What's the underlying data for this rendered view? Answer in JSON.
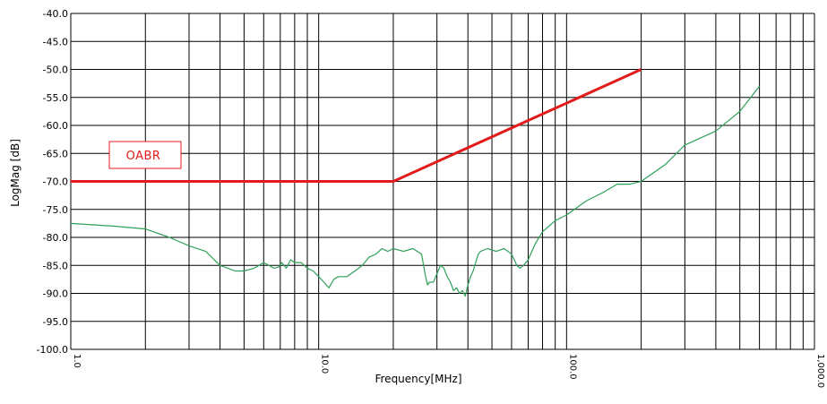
{
  "chart_data": {
    "type": "line",
    "title": "",
    "xlabel": "Frequency[MHz]",
    "ylabel": "LogMag [dB]",
    "x_scale": "log",
    "xlim": [
      1,
      1000
    ],
    "ylim": [
      -100,
      -40
    ],
    "grid": true,
    "x_tick_labels": [
      "1.0",
      "10.0",
      "100.0",
      "1,000.0"
    ],
    "y_tick_labels": [
      "-40.0",
      "-45.0",
      "-50.0",
      "-55.0",
      "-60.0",
      "-65.0",
      "-70.0",
      "-75.0",
      "-80.0",
      "-85.0",
      "-90.0",
      "-95.0",
      "-100.0"
    ],
    "annotation": "OABR",
    "series": [
      {
        "color": "#e21c1c",
        "x": [
          1,
          20,
          200
        ],
        "y": [
          -70,
          -70,
          -50
        ]
      },
      {
        "color": "#2fa05a",
        "x": [
          1,
          1.5,
          2,
          2.5,
          3,
          3.5,
          4,
          4.3,
          4.6,
          5,
          5.5,
          6,
          6.3,
          6.6,
          6.9,
          7.1,
          7.4,
          7.7,
          8,
          8.5,
          9,
          9.5,
          10,
          10.5,
          11,
          11.5,
          12,
          13,
          14,
          15,
          16,
          17,
          18,
          19,
          20,
          22,
          24,
          26,
          27,
          27.5,
          28,
          29,
          30,
          31,
          32,
          33,
          34,
          35,
          36,
          37,
          38,
          39,
          40,
          41,
          42,
          43,
          44,
          45,
          48,
          52,
          56,
          60,
          63,
          65,
          67,
          70,
          75,
          80,
          90,
          100,
          120,
          140,
          160,
          180,
          200,
          250,
          300,
          400,
          500,
          600
        ],
        "y": [
          -77.5,
          -78,
          -78.5,
          -80,
          -81.5,
          -82.5,
          -85,
          -85.5,
          -86,
          -86,
          -85.5,
          -84.5,
          -85,
          -85.5,
          -85.3,
          -84.5,
          -85.5,
          -84,
          -84.5,
          -84.5,
          -85.5,
          -86,
          -87,
          -88,
          -89,
          -87.5,
          -87,
          -87,
          -86,
          -85,
          -83.5,
          -83,
          -82,
          -82.5,
          -82,
          -82.5,
          -82,
          -83,
          -87,
          -88.5,
          -88,
          -88,
          -86.5,
          -85,
          -85.5,
          -87,
          -88,
          -89.5,
          -89,
          -90,
          -89.5,
          -90.5,
          -88.5,
          -87,
          -86,
          -84.5,
          -83,
          -82.5,
          -82,
          -82.5,
          -82,
          -83,
          -85,
          -85.5,
          -85,
          -84,
          -81,
          -79,
          -77,
          -76,
          -73.5,
          -72,
          -70.5,
          -70.5,
          -70,
          -67,
          -63.5,
          -61,
          -57.5,
          -53
        ]
      }
    ]
  }
}
